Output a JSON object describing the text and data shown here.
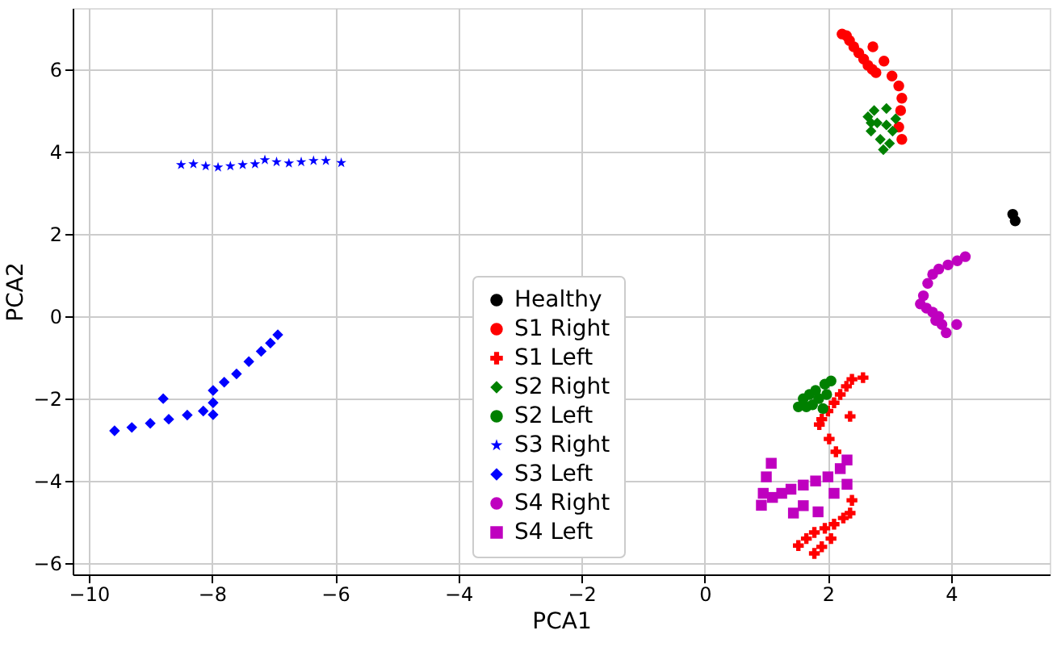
{
  "chart_data": {
    "type": "scatter",
    "xlabel": "PCA1",
    "ylabel": "PCA2",
    "xlim": [
      -10.26,
      5.6
    ],
    "ylim": [
      -6.27,
      7.49
    ],
    "xticks": [
      -10,
      -8,
      -6,
      -4,
      -2,
      0,
      2,
      4
    ],
    "yticks": [
      -6,
      -4,
      -2,
      0,
      2,
      4,
      6
    ],
    "grid": true,
    "legend": "bottom",
    "series": [
      {
        "name": "Healthy",
        "color": "#000000",
        "marker": "circle",
        "x": [
          5.0,
          5.04
        ],
        "values": [
          2.48,
          2.32
        ]
      },
      {
        "name": "S1 Right",
        "color": "#ff0000",
        "marker": "circle",
        "x": [
          2.23,
          2.3,
          2.35,
          2.42,
          2.5,
          2.58,
          2.65,
          2.72,
          2.78,
          2.73,
          2.91,
          3.04,
          3.15,
          3.2,
          3.18,
          3.15,
          3.2
        ],
        "values": [
          6.86,
          6.82,
          6.7,
          6.55,
          6.4,
          6.25,
          6.1,
          6.0,
          5.92,
          6.55,
          6.2,
          5.84,
          5.6,
          5.3,
          5.0,
          4.6,
          4.3
        ]
      },
      {
        "name": "S1 Left",
        "color": "#ff0000",
        "marker": "cross",
        "x": [
          2.57,
          2.39,
          2.3,
          2.2,
          2.1,
          2.0,
          1.9,
          1.86,
          2.36,
          2.02,
          2.13,
          2.39,
          2.36,
          2.25,
          2.1,
          1.95,
          1.78,
          1.65,
          1.52,
          1.78,
          1.9,
          2.05
        ],
        "values": [
          -1.49,
          -1.53,
          -1.7,
          -1.9,
          -2.1,
          -2.3,
          -2.5,
          -2.63,
          -2.43,
          -2.98,
          -3.29,
          -4.47,
          -4.78,
          -4.9,
          -5.05,
          -5.15,
          -5.25,
          -5.4,
          -5.57,
          -5.76,
          -5.6,
          -5.4
        ]
      },
      {
        "name": "S2 Right",
        "color": "#008000",
        "marker": "diamond",
        "x": [
          2.65,
          2.75,
          2.95,
          3.1,
          2.7,
          2.85,
          2.9,
          3.05,
          2.8,
          3.0,
          2.7,
          2.95
        ],
        "values": [
          4.85,
          5.0,
          5.05,
          4.8,
          4.5,
          4.3,
          4.05,
          4.5,
          4.7,
          4.2,
          4.7,
          4.65
        ]
      },
      {
        "name": "S2 Left",
        "color": "#008000",
        "marker": "circle",
        "x": [
          1.52,
          1.6,
          1.7,
          1.8,
          1.95,
          2.05,
          1.92,
          1.75,
          1.65,
          1.85,
          1.98
        ],
        "values": [
          -2.2,
          -2.0,
          -1.9,
          -1.8,
          -1.65,
          -1.57,
          -2.24,
          -2.15,
          -2.2,
          -2.0,
          -1.9
        ]
      },
      {
        "name": "S3 Right",
        "color": "#0000ff",
        "marker": "star",
        "x": [
          -8.5,
          -8.3,
          -8.1,
          -7.9,
          -7.7,
          -7.5,
          -7.3,
          -7.14,
          -6.95,
          -6.75,
          -6.55,
          -6.35,
          -6.15,
          -5.9
        ],
        "values": [
          3.68,
          3.7,
          3.65,
          3.62,
          3.65,
          3.68,
          3.7,
          3.8,
          3.75,
          3.72,
          3.75,
          3.78,
          3.78,
          3.73
        ]
      },
      {
        "name": "S3 Left",
        "color": "#0000ff",
        "marker": "diamond",
        "x": [
          -9.58,
          -9.3,
          -9.0,
          -8.7,
          -8.4,
          -8.14,
          -7.98,
          -7.98,
          -7.98,
          -7.8,
          -7.6,
          -7.4,
          -7.2,
          -7.05,
          -6.93,
          -8.79
        ],
        "values": [
          -2.78,
          -2.7,
          -2.6,
          -2.5,
          -2.4,
          -2.3,
          -2.39,
          -2.1,
          -1.8,
          -1.6,
          -1.4,
          -1.1,
          -0.85,
          -0.65,
          -0.45,
          -2.0
        ]
      },
      {
        "name": "S4 Right",
        "color": "#bf00bf",
        "marker": "circle",
        "x": [
          4.23,
          4.1,
          3.95,
          3.8,
          3.7,
          3.62,
          3.55,
          3.5,
          3.6,
          3.7,
          3.8,
          3.85,
          3.92,
          3.75,
          4.09
        ],
        "values": [
          1.45,
          1.35,
          1.25,
          1.15,
          1.02,
          0.8,
          0.5,
          0.3,
          0.2,
          0.1,
          0.0,
          -0.2,
          -0.4,
          -0.1,
          -0.2
        ]
      },
      {
        "name": "S4 Left",
        "color": "#bf00bf",
        "marker": "square",
        "x": [
          1.08,
          1.0,
          0.95,
          0.92,
          1.1,
          1.25,
          1.44,
          1.4,
          1.6,
          1.8,
          2.0,
          2.2,
          2.31,
          2.31,
          1.84,
          1.6,
          2.1
        ],
        "values": [
          -3.57,
          -3.9,
          -4.3,
          -4.59,
          -4.4,
          -4.3,
          -4.78,
          -4.2,
          -4.1,
          -4.0,
          -3.9,
          -3.7,
          -3.49,
          -4.08,
          -4.75,
          -4.6,
          -4.3
        ]
      }
    ]
  }
}
